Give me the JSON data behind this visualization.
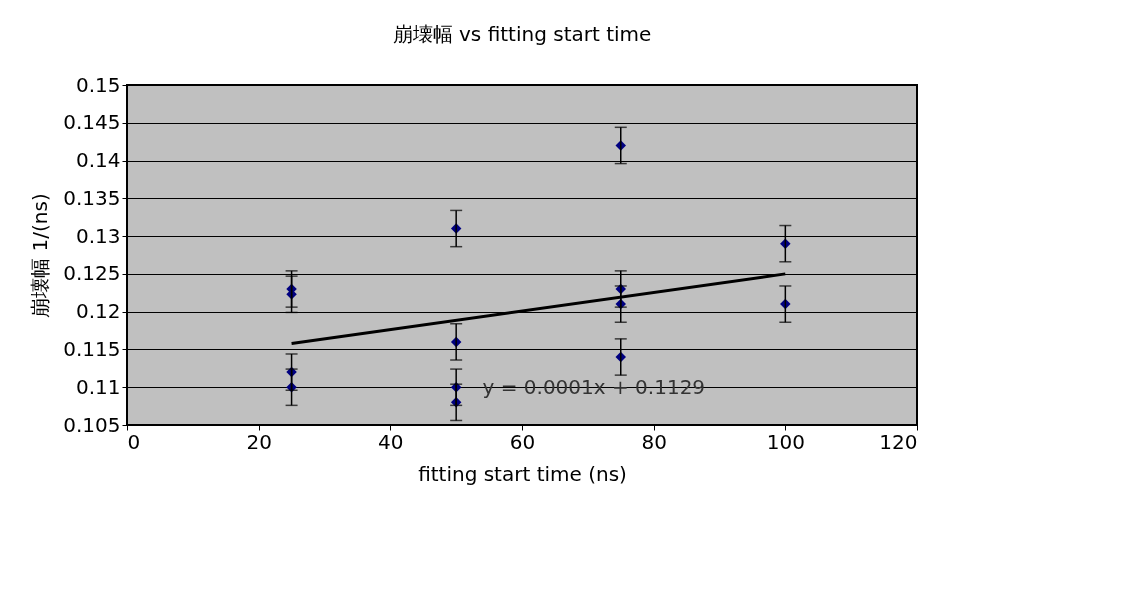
{
  "chart_data": {
    "type": "scatter",
    "title": "崩壊幅 vs fitting start time",
    "xlabel": "fitting start time (ns)",
    "ylabel": "崩壊幅 1/(ns)",
    "series": [
      {
        "color": "#000080",
        "x": [
          25,
          25,
          25,
          25,
          50,
          50,
          50,
          50,
          75,
          75,
          75,
          75,
          100,
          100
        ],
        "values": [
          0.123,
          0.1223,
          0.112,
          0.11,
          0.131,
          0.116,
          0.11,
          0.108,
          0.142,
          0.123,
          0.121,
          0.114,
          0.129,
          0.121
        ],
        "errors": [
          0.0024,
          0.0024,
          0.0024,
          0.0024,
          0.0024,
          0.0024,
          0.0024,
          0.0024,
          0.0024,
          0.0024,
          0.0024,
          0.0024,
          0.0024,
          0.0024
        ]
      },
      {
        "type": "line",
        "marker": "none",
        "color": "#000000",
        "x": [
          25,
          100
        ],
        "values": [
          0.1158,
          0.125
        ]
      }
    ],
    "annotations": [
      "y = 0.0001x + 0.1129"
    ],
    "xlim": [
      0,
      120
    ],
    "xticks": [
      0,
      20,
      40,
      60,
      80,
      100,
      120
    ],
    "ylim": [
      0.105,
      0.15
    ],
    "yticks": [
      0.105,
      0.11,
      0.115,
      0.12,
      0.125,
      0.13,
      0.135,
      0.14,
      0.145,
      0.15
    ],
    "grid": "y",
    "marker": "diamond"
  }
}
